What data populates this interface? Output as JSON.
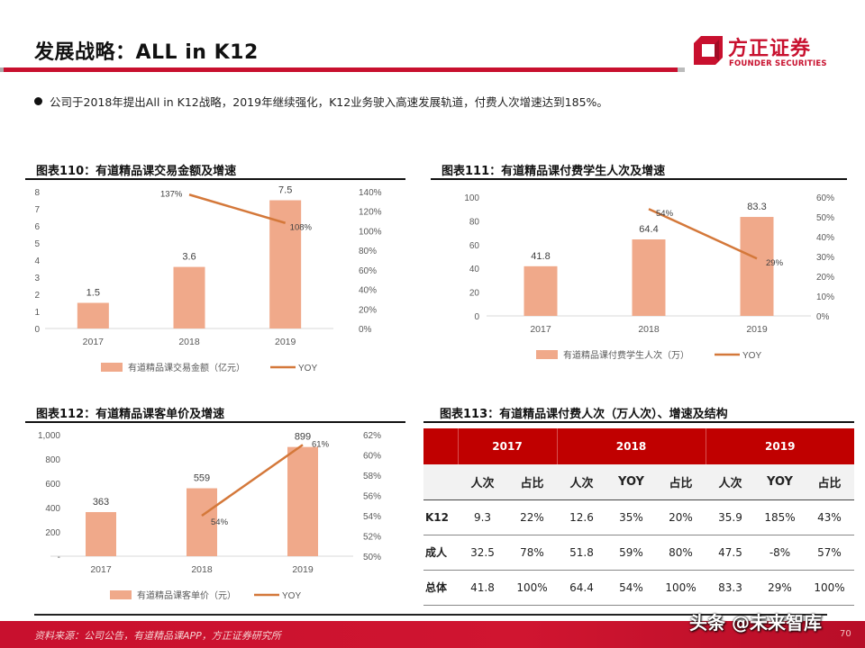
{
  "header": {
    "title": "发展战略：ALL in K12",
    "logo_cn": "方正证券",
    "logo_en": "FOUNDER SECURITIES"
  },
  "bullet": "公司于2018年提出All in K12战略，2019年继续强化，K12业务驶入高速发展轨道，付费人次增速达到185%。",
  "colors": {
    "brand_red": "#c8102e",
    "bar": "#f0a98a",
    "line": "#d4783a",
    "table_header": "#c00000"
  },
  "figures": {
    "fig110": {
      "title": "图表110：有道精品课交易金额及增速"
    },
    "fig111": {
      "title": "图表111：有道精品课付费学生人次及增速"
    },
    "fig112": {
      "title": "图表112：有道精品课客单价及增速"
    },
    "fig113": {
      "title": "图表113：有道精品课付费人次（万人次）、增速及结构"
    }
  },
  "chart_data": [
    {
      "id": "fig110",
      "type": "bar",
      "title": "图表110：有道精品课交易金额及增速",
      "categories": [
        "2017",
        "2018",
        "2019"
      ],
      "series": [
        {
          "name": "有道精品课交易金额（亿元）",
          "type": "bar",
          "axis": "left",
          "values": [
            1.5,
            3.6,
            7.5
          ],
          "labels": [
            "1.5",
            "3.6",
            "7.5"
          ]
        },
        {
          "name": "YOY",
          "type": "line",
          "axis": "right",
          "values": [
            null,
            1.37,
            1.08
          ],
          "labels": [
            "",
            "137%",
            "108%"
          ]
        }
      ],
      "y_left": {
        "ticks": [
          "0",
          "1",
          "2",
          "3",
          "4",
          "5",
          "6",
          "7",
          "8"
        ],
        "range": [
          0,
          8
        ]
      },
      "y_right": {
        "ticks": [
          "0%",
          "20%",
          "40%",
          "60%",
          "80%",
          "100%",
          "120%",
          "140%"
        ],
        "range": [
          0,
          1.4
        ]
      },
      "legend": [
        "有道精品课交易金额（亿元）",
        "YOY"
      ],
      "legend_position": "bottom",
      "grid": false
    },
    {
      "id": "fig111",
      "type": "bar",
      "title": "图表111：有道精品课付费学生人次及增速",
      "categories": [
        "2017",
        "2018",
        "2019"
      ],
      "series": [
        {
          "name": "有道精品课付费学生人次（万）",
          "type": "bar",
          "axis": "left",
          "values": [
            41.8,
            64.4,
            83.3
          ],
          "labels": [
            "41.8",
            "64.4",
            "83.3"
          ]
        },
        {
          "name": "YOY",
          "type": "line",
          "axis": "right",
          "values": [
            null,
            0.54,
            0.29
          ],
          "labels": [
            "",
            "54%",
            "29%"
          ]
        }
      ],
      "y_left": {
        "ticks": [
          "0",
          "20",
          "40",
          "60",
          "80",
          "100"
        ],
        "range": [
          0,
          100
        ]
      },
      "y_right": {
        "ticks": [
          "0%",
          "10%",
          "20%",
          "30%",
          "40%",
          "50%",
          "60%"
        ],
        "range": [
          0,
          0.6
        ]
      },
      "legend": [
        "有道精品课付费学生人次（万）",
        "YOY"
      ],
      "legend_position": "bottom",
      "grid": false
    },
    {
      "id": "fig112",
      "type": "bar",
      "title": "图表112：有道精品课客单价及增速",
      "categories": [
        "2017",
        "2018",
        "2019"
      ],
      "series": [
        {
          "name": "有道精品课客单价（元）",
          "type": "bar",
          "axis": "left",
          "values": [
            363,
            559,
            899
          ],
          "labels": [
            "363",
            "559",
            "899"
          ]
        },
        {
          "name": "YOY",
          "type": "line",
          "axis": "right",
          "values": [
            null,
            0.54,
            0.61
          ],
          "labels": [
            "",
            "54%",
            "61%"
          ]
        }
      ],
      "y_left": {
        "ticks": [
          "-",
          "200",
          "400",
          "600",
          "800",
          "1,000"
        ],
        "range": [
          0,
          1000
        ]
      },
      "y_right": {
        "ticks": [
          "50%",
          "52%",
          "54%",
          "56%",
          "58%",
          "60%",
          "62%"
        ],
        "range": [
          0.5,
          0.62
        ]
      },
      "legend": [
        "有道精品课客单价（元）",
        "YOY"
      ],
      "legend_position": "bottom",
      "grid": false
    },
    {
      "id": "fig113",
      "type": "table",
      "title": "图表113：有道精品课付费人次（万人次）、增速及结构",
      "year_headers": [
        "2017",
        "2018",
        "2019"
      ],
      "columns": [
        "人次",
        "占比",
        "人次",
        "YOY",
        "占比",
        "人次",
        "YOY",
        "占比"
      ],
      "rows": [
        {
          "label": "K12",
          "cells": [
            "9.3",
            "22%",
            "12.6",
            "35%",
            "20%",
            "35.9",
            "185%",
            "43%"
          ]
        },
        {
          "label": "成人",
          "cells": [
            "32.5",
            "78%",
            "51.8",
            "59%",
            "80%",
            "47.5",
            "-8%",
            "57%"
          ]
        },
        {
          "label": "总体",
          "cells": [
            "41.8",
            "100%",
            "64.4",
            "54%",
            "100%",
            "83.3",
            "29%",
            "100%"
          ]
        }
      ]
    }
  ],
  "footer": {
    "source": "资料来源：公司公告，有道精品课APP，方正证券研究所",
    "page_number": "70",
    "watermark": "头条 @未来智库"
  }
}
